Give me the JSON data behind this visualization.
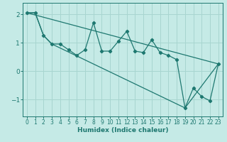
{
  "xlabel": "Humidex (Indice chaleur)",
  "background_color": "#c5eae6",
  "grid_color": "#a8d5d0",
  "line_color": "#1e7870",
  "xlim": [
    -0.5,
    23.5
  ],
  "ylim": [
    -1.6,
    2.4
  ],
  "yticks": [
    -1,
    0,
    1,
    2
  ],
  "xticks": [
    0,
    1,
    2,
    3,
    4,
    5,
    6,
    7,
    8,
    9,
    10,
    11,
    12,
    13,
    14,
    15,
    16,
    17,
    18,
    19,
    20,
    21,
    22,
    23
  ],
  "jagged_x": [
    0,
    1,
    2,
    3,
    4,
    5,
    6,
    7,
    8,
    9,
    10,
    11,
    12,
    13,
    14,
    15,
    16,
    17,
    18,
    19,
    20,
    21,
    22,
    23
  ],
  "jagged_y": [
    2.05,
    2.05,
    1.25,
    0.95,
    0.95,
    0.75,
    0.55,
    0.75,
    1.7,
    0.7,
    0.7,
    1.05,
    1.4,
    0.7,
    0.65,
    1.1,
    0.65,
    0.55,
    0.4,
    -1.3,
    -0.6,
    -0.9,
    -1.05,
    0.25
  ],
  "line1_x": [
    0,
    23
  ],
  "line1_y": [
    2.05,
    0.25
  ],
  "line2_x": [
    0,
    1,
    2,
    3,
    19,
    23
  ],
  "line2_y": [
    2.05,
    2.05,
    1.25,
    0.95,
    -1.3,
    0.25
  ]
}
